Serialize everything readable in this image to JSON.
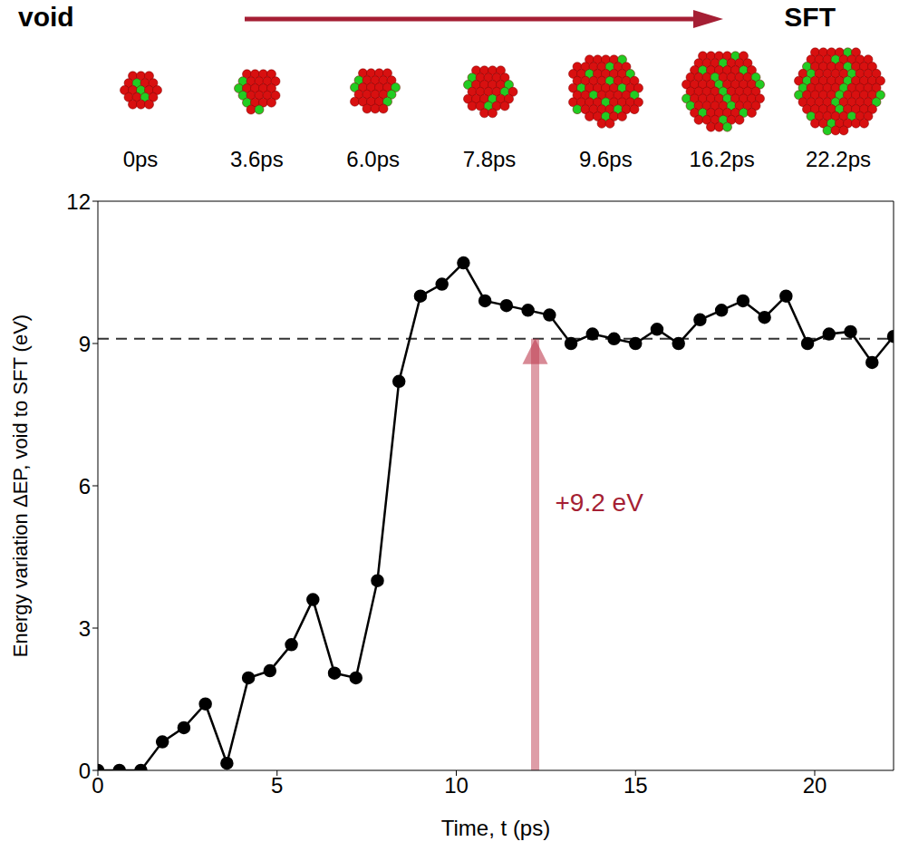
{
  "chart_data": {
    "type": "line",
    "header": {
      "start": "void",
      "end": "SFT",
      "snapshots": [
        "0ps",
        "3.6ps",
        "6.0ps",
        "7.8ps",
        "9.6ps",
        "16.2ps",
        "22.2ps"
      ]
    },
    "x_label": "Time, t (ps)",
    "y_label": "Energy variation ΔEP, void to SFT (eV)",
    "x": [
      0,
      0.6,
      1.2,
      1.8,
      2.4,
      3.0,
      3.6,
      4.2,
      4.8,
      5.4,
      6.0,
      6.6,
      7.2,
      7.8,
      8.4,
      9.0,
      9.6,
      10.2,
      10.8,
      11.4,
      12.0,
      12.6,
      13.2,
      13.8,
      14.4,
      15.0,
      15.6,
      16.2,
      16.8,
      17.4,
      18.0,
      18.6,
      19.2,
      19.8,
      20.4,
      21.0,
      21.6,
      22.2
    ],
    "values": [
      0,
      0,
      0,
      0.6,
      0.9,
      1.4,
      0.15,
      1.95,
      2.1,
      2.65,
      3.6,
      2.05,
      1.95,
      4.0,
      8.2,
      10.0,
      10.25,
      10.7,
      9.9,
      9.8,
      9.7,
      9.6,
      9.0,
      9.2,
      9.1,
      9.0,
      9.3,
      9.0,
      9.5,
      9.7,
      9.9,
      9.55,
      10.0,
      9.0,
      9.2,
      9.25,
      8.6,
      9.15
    ],
    "color": "#000000",
    "marker": "circle",
    "line_style": "solid",
    "reference_y": 9.1,
    "annotation": {
      "text": "+9.2 eV",
      "x": 12.2,
      "from": 0,
      "to": 9.1
    },
    "xlim": [
      0,
      22.2
    ],
    "ylim": [
      0,
      12
    ],
    "xticks": [
      0,
      5,
      10,
      15,
      20
    ],
    "yticks": [
      0,
      3,
      6,
      9,
      12
    ],
    "grid": false
  }
}
